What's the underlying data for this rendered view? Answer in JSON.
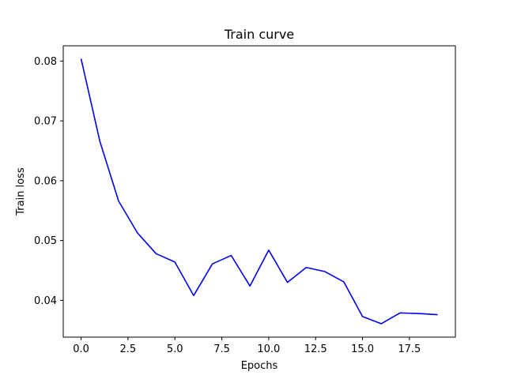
{
  "chart_data": {
    "type": "line",
    "title": "Train curve",
    "xlabel": "Epochs",
    "ylabel": "Train loss",
    "xlim": [
      -0.95,
      19.95
    ],
    "ylim": [
      0.03385,
      0.08255
    ],
    "xticks": [
      0.0,
      2.5,
      5.0,
      7.5,
      10.0,
      12.5,
      15.0,
      17.5
    ],
    "xtick_labels": [
      "0.0",
      "2.5",
      "5.0",
      "7.5",
      "10.0",
      "12.5",
      "15.0",
      "17.5"
    ],
    "yticks": [
      0.04,
      0.05,
      0.06,
      0.07,
      0.08
    ],
    "ytick_labels": [
      "0.04",
      "0.05",
      "0.06",
      "0.07",
      "0.08"
    ],
    "grid": false,
    "line_color": "#0000ee",
    "series": [
      {
        "x": [
          0,
          1,
          2,
          3,
          4,
          5,
          6,
          7,
          8,
          9,
          10,
          11,
          12,
          13,
          14,
          15,
          16,
          17,
          18,
          19
        ],
        "values": [
          0.0804,
          0.0666,
          0.0566,
          0.0513,
          0.0478,
          0.0464,
          0.0408,
          0.0461,
          0.0475,
          0.0424,
          0.0484,
          0.043,
          0.0455,
          0.0448,
          0.0431,
          0.0373,
          0.0361,
          0.0379,
          0.0378,
          0.0376
        ]
      }
    ]
  }
}
